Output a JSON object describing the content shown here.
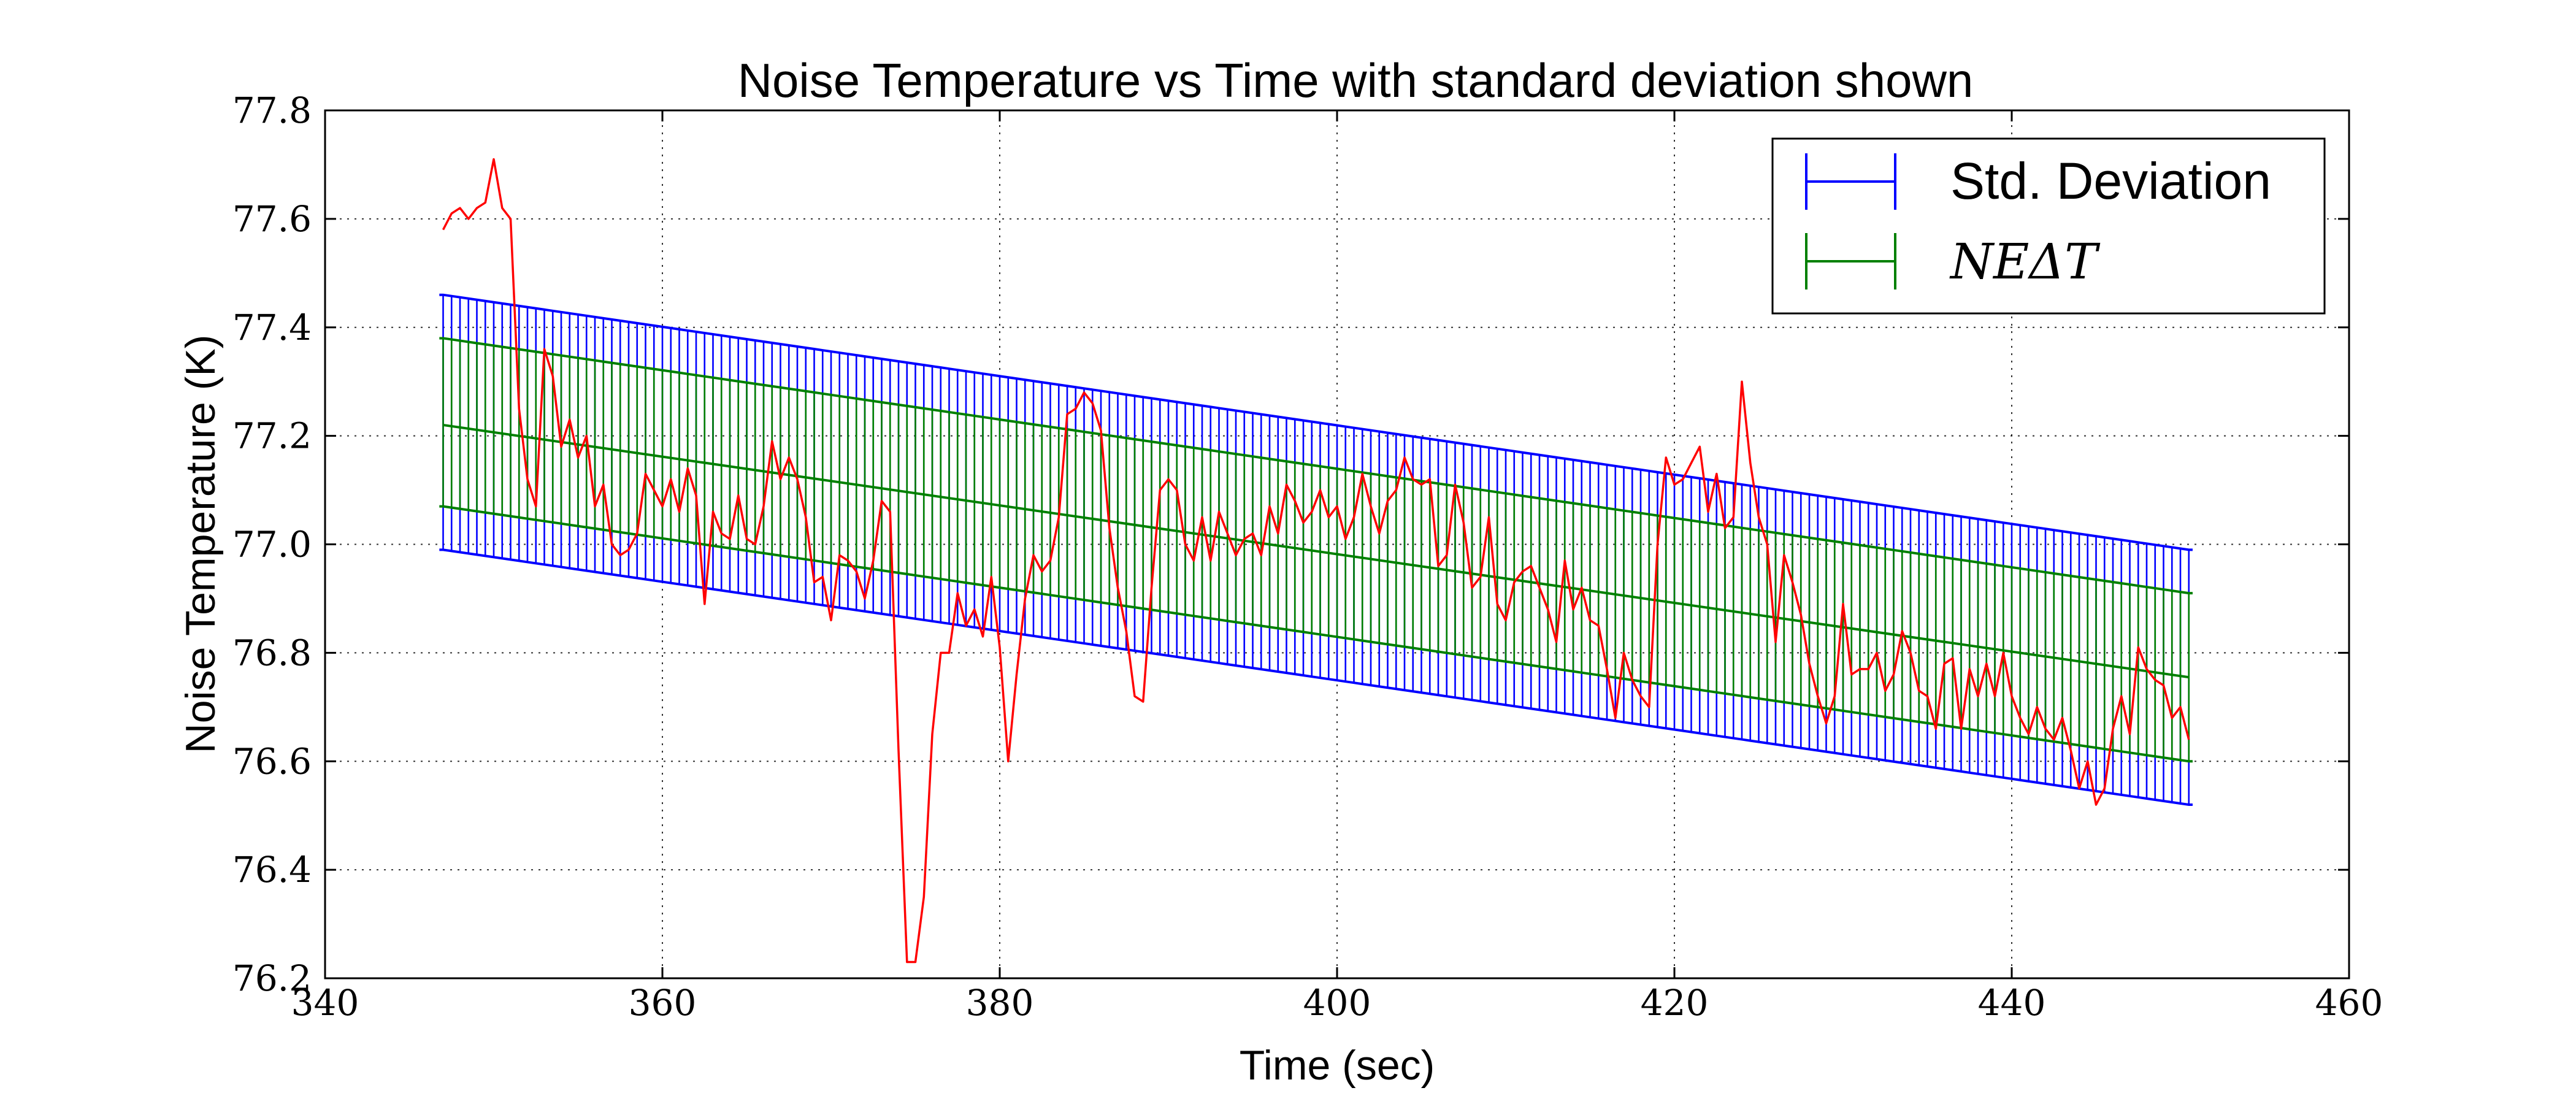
{
  "chart_data": {
    "type": "line",
    "title": "Noise Temperature vs Time with standard deviation shown",
    "xlabel": "Time (sec)",
    "ylabel": "Noise Temperature (K)",
    "xlim": [
      340,
      460
    ],
    "ylim": [
      76.2,
      77.8
    ],
    "x_ticks": [
      340,
      360,
      380,
      400,
      420,
      440,
      460
    ],
    "x_tick_labels": [
      "340",
      "360",
      "380",
      "400",
      "420",
      "440",
      "460"
    ],
    "y_ticks": [
      76.2,
      76.4,
      76.6,
      76.8,
      77.0,
      77.2,
      77.4,
      77.6,
      77.8
    ],
    "y_tick_labels": [
      "76.2",
      "76.4",
      "76.6",
      "76.8",
      "77.0",
      "77.2",
      "77.4",
      "77.6",
      "77.8"
    ],
    "grid": true,
    "legend_position": "top-right",
    "legend": [
      {
        "label": "Std. Deviation",
        "color": "#0000ff",
        "marker": "errorbar"
      },
      {
        "label": "NEΔT",
        "color": "#008000",
        "marker": "errorbar",
        "math_style": "italic"
      }
    ],
    "series": [
      {
        "color": "#ff0000",
        "x": [
          347,
          347.5,
          348,
          348.5,
          349,
          349.5,
          350,
          350.5,
          351,
          351.5,
          352,
          352.5,
          353,
          353.5,
          354,
          354.5,
          355,
          355.5,
          356,
          356.5,
          357,
          357.5,
          358,
          358.5,
          359,
          359.5,
          360,
          360.5,
          361,
          361.5,
          362,
          362.5,
          363,
          363.5,
          364,
          364.5,
          365,
          365.5,
          366,
          366.5,
          367,
          367.5,
          368,
          368.5,
          369,
          369.5,
          370,
          370.5,
          371,
          371.5,
          372,
          372.5,
          373,
          373.5,
          374,
          374.5,
          375,
          375.5,
          376,
          376.5,
          377,
          377.5,
          378,
          378.5,
          379,
          379.5,
          380,
          380.5,
          381,
          381.5,
          382,
          382.5,
          383,
          383.5,
          384,
          384.5,
          385,
          385.5,
          386,
          386.5,
          387,
          387.5,
          388,
          388.5,
          389,
          389.5,
          390,
          390.5,
          391,
          391.5,
          392,
          392.5,
          393,
          393.5,
          394,
          394.5,
          395,
          395.5,
          396,
          396.5,
          397,
          397.5,
          398,
          398.5,
          399,
          399.5,
          400,
          400.5,
          401,
          401.5,
          402,
          402.5,
          403,
          403.5,
          404,
          404.5,
          405,
          405.5,
          406,
          406.5,
          407,
          407.5,
          408,
          408.5,
          409,
          409.5,
          410,
          410.5,
          411,
          411.5,
          412,
          412.5,
          413,
          413.5,
          414,
          414.5,
          415,
          415.5,
          416,
          416.5,
          417,
          417.5,
          418,
          418.5,
          419,
          419.5,
          420,
          420.5,
          421,
          421.5,
          422,
          422.5,
          423,
          423.5,
          424,
          424.5,
          425,
          425.5,
          426,
          426.5,
          427,
          427.5,
          428,
          428.5,
          429,
          429.5,
          430,
          430.5,
          431,
          431.5,
          432,
          432.5,
          433,
          433.5,
          434,
          434.5,
          435,
          435.5,
          436,
          436.5,
          437,
          437.5,
          438,
          438.5,
          439,
          439.5,
          440,
          440.5,
          441,
          441.5,
          442,
          442.5,
          443,
          443.5,
          444,
          444.5,
          445,
          445.5,
          446,
          446.5,
          447,
          447.5,
          448,
          448.5,
          449,
          449.5,
          450,
          450.5
        ],
        "y": [
          77.58,
          77.61,
          77.62,
          77.6,
          77.62,
          77.63,
          77.71,
          77.62,
          77.6,
          77.25,
          77.12,
          77.07,
          77.36,
          77.31,
          77.18,
          77.23,
          77.16,
          77.2,
          77.07,
          77.11,
          77.0,
          76.98,
          76.99,
          77.02,
          77.13,
          77.1,
          77.07,
          77.12,
          77.06,
          77.14,
          77.09,
          76.89,
          77.06,
          77.02,
          77.01,
          77.09,
          77.01,
          77.0,
          77.07,
          77.19,
          77.12,
          77.16,
          77.12,
          77.05,
          76.93,
          76.94,
          76.86,
          76.98,
          76.97,
          76.95,
          76.9,
          76.97,
          77.08,
          77.06,
          76.62,
          76.23,
          76.23,
          76.35,
          76.65,
          76.8,
          76.8,
          76.91,
          76.85,
          76.88,
          76.83,
          76.94,
          76.81,
          76.6,
          76.76,
          76.9,
          76.98,
          76.95,
          76.97,
          77.05,
          77.24,
          77.25,
          77.28,
          77.26,
          77.21,
          77.03,
          76.92,
          76.84,
          76.72,
          76.71,
          76.92,
          77.1,
          77.12,
          77.1,
          77.0,
          76.97,
          77.05,
          76.97,
          77.06,
          77.02,
          76.98,
          77.01,
          77.02,
          76.98,
          77.07,
          77.02,
          77.11,
          77.08,
          77.04,
          77.06,
          77.1,
          77.05,
          77.07,
          77.01,
          77.05,
          77.13,
          77.07,
          77.02,
          77.08,
          77.1,
          77.16,
          77.12,
          77.11,
          77.12,
          76.96,
          76.98,
          77.11,
          77.04,
          76.92,
          76.94,
          77.05,
          76.89,
          76.86,
          76.93,
          76.95,
          76.96,
          76.92,
          76.88,
          76.82,
          76.97,
          76.88,
          76.92,
          76.86,
          76.85,
          76.77,
          76.68,
          76.8,
          76.75,
          76.72,
          76.7,
          77.0,
          77.16,
          77.11,
          77.12,
          77.15,
          77.18,
          77.06,
          77.13,
          77.03,
          77.05,
          77.3,
          77.15,
          77.05,
          77.0,
          76.82,
          76.98,
          76.93,
          76.87,
          76.78,
          76.72,
          76.67,
          76.72,
          76.89,
          76.76,
          76.77,
          76.77,
          76.8,
          76.73,
          76.76,
          76.84,
          76.8,
          76.73,
          76.72,
          76.66,
          76.78,
          76.79,
          76.66,
          76.77,
          76.72,
          76.78,
          76.72,
          76.8,
          76.72,
          76.68,
          76.65,
          76.7,
          76.66,
          76.64,
          76.68,
          76.62,
          76.55,
          76.6,
          76.52,
          76.55,
          76.66,
          76.72,
          76.65,
          76.81,
          76.77,
          76.75,
          76.74,
          76.68,
          76.7,
          76.64
        ]
      }
    ],
    "std_dev_band": {
      "color": "#0000ff",
      "x_start": 347,
      "x_end": 450.5,
      "x_step": 0.5,
      "lower_start": 76.99,
      "lower_end": 76.52,
      "upper_start": 77.46,
      "upper_end": 76.99
    },
    "nedt_band": {
      "color": "#008000",
      "x_start": 347,
      "x_end": 450.5,
      "x_step": 0.5,
      "center_start": 77.22,
      "center_end": 76.755,
      "lower_start": 77.07,
      "lower_end": 76.6,
      "upper_start": 77.38,
      "upper_end": 76.91
    }
  }
}
